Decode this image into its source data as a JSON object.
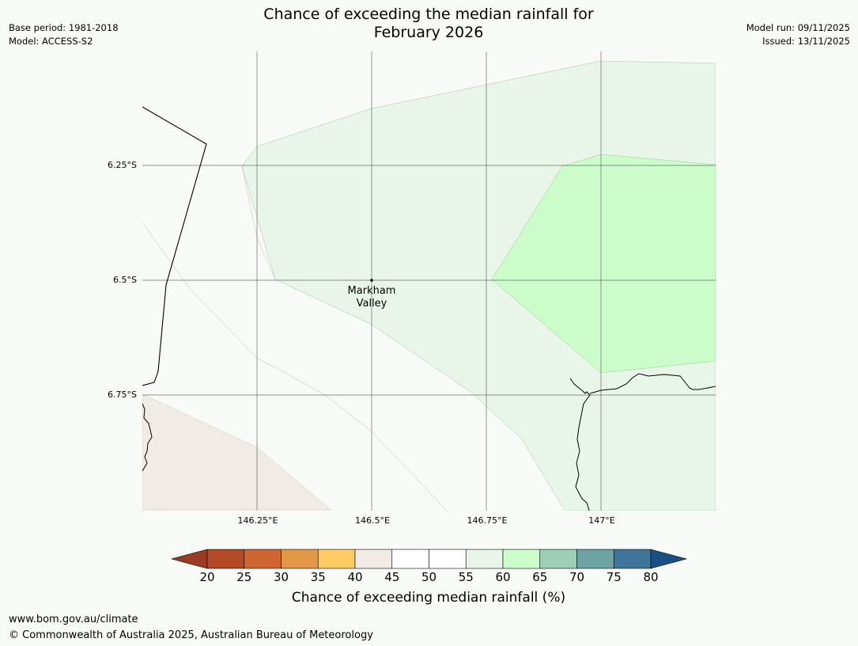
{
  "header": {
    "title_line1": "Chance of exceeding the median rainfall for",
    "title_line2": "February 2026",
    "base_period": "Base period: 1981-2018",
    "model": "Model: ACCESS-S2",
    "model_run": "Model run: 09/11/2025",
    "issued": "Issued: 13/11/2025"
  },
  "map": {
    "lat_labels": [
      "6.25°S",
      "6.5°S",
      "6.75°S"
    ],
    "lon_labels": [
      "146.25°E",
      "146.5°E",
      "146.75°E",
      "147°E"
    ],
    "place": {
      "name_line1": "Markham",
      "name_line2": "Valley"
    },
    "region_colors": {
      "ocean_bg": "#f8faf8",
      "band_40_45": "#f0ebe5",
      "band_55_60": "#e9f5e9",
      "band_60_65": "#ccfcc9"
    }
  },
  "colorbar": {
    "label": "Chance of exceeding median rainfall (%)",
    "ticks": [
      "20",
      "25",
      "30",
      "35",
      "40",
      "45",
      "50",
      "55",
      "60",
      "65",
      "70",
      "75",
      "80"
    ],
    "under_color": "#9b3a25",
    "over_color": "#1a4f86",
    "colors": [
      "#b24927",
      "#ce6532",
      "#e39847",
      "#fecb65",
      "#f0ebe5",
      "#ffffff",
      "#ffffff",
      "#e9f5e9",
      "#ccfcc9",
      "#9ccfb6",
      "#6da3a3",
      "#3e7599"
    ]
  },
  "footer": {
    "url": "www.bom.gov.au/climate",
    "copyright": "© Commonwealth of Australia 2025, Australian Bureau of Meteorology"
  }
}
